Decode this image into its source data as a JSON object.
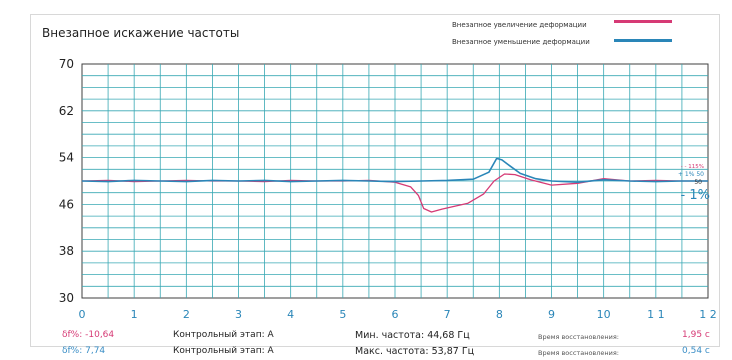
{
  "chart_data": {
    "type": "line",
    "title": "Внезапное искажение частоты",
    "xlim": [
      0,
      12
    ],
    "ylim": [
      30,
      70
    ],
    "x_ticks": [
      "0",
      "1",
      "2",
      "3",
      "4",
      "5",
      "6",
      "7",
      "8",
      "9",
      "10",
      "1 1",
      "1 2"
    ],
    "y_ticks": [
      "70",
      "62",
      "54",
      "46",
      "38",
      "30"
    ],
    "grid": true,
    "legend_position": "top-right",
    "series": [
      {
        "name": "Внезапное увеличение деформации",
        "color": "#d63a75",
        "x": [
          0,
          0.5,
          1,
          1.5,
          2,
          2.5,
          3,
          3.5,
          4,
          4.5,
          5,
          5.5,
          6,
          6.3,
          6.45,
          6.55,
          6.7,
          6.9,
          7.1,
          7.4,
          7.7,
          7.9,
          8.1,
          8.3,
          8.6,
          9.0,
          9.5,
          10,
          10.5,
          11,
          11.5,
          12
        ],
        "y": [
          50.0,
          50.1,
          49.9,
          50.0,
          50.1,
          50.0,
          50.0,
          49.9,
          50.1,
          50.0,
          50.0,
          50.1,
          49.8,
          49.0,
          47.5,
          45.3,
          44.7,
          45.2,
          45.6,
          46.2,
          47.8,
          50.0,
          51.2,
          51.1,
          50.2,
          49.3,
          49.6,
          50.4,
          50.0,
          50.1,
          50.0,
          50.0
        ]
      },
      {
        "name": "Внезапное уменьшение деформации",
        "color": "#2a86b8",
        "x": [
          0,
          0.5,
          1,
          1.5,
          2,
          2.5,
          3,
          3.5,
          4,
          4.5,
          5,
          5.5,
          6,
          6.5,
          7,
          7.5,
          7.8,
          7.95,
          8.05,
          8.2,
          8.4,
          8.7,
          9.0,
          9.5,
          10,
          10.5,
          11,
          11.5,
          12
        ],
        "y": [
          50.0,
          49.9,
          50.1,
          50.0,
          49.9,
          50.1,
          50.0,
          50.1,
          49.9,
          50.0,
          50.1,
          50.0,
          49.9,
          50.0,
          50.1,
          50.3,
          51.5,
          53.87,
          53.6,
          52.6,
          51.3,
          50.4,
          50.0,
          49.8,
          50.2,
          50.0,
          49.9,
          50.0,
          50.0
        ]
      }
    ],
    "annotations": {
      "right_top": "- - 115%",
      "right_mid": "+ 1% 50",
      "right_small": "50",
      "right_big": "- 1%"
    }
  },
  "summary": {
    "row1": {
      "df": "δf%: -10,64",
      "stage": "Контрольный этап: A",
      "freq": "Мин. частота: 44,68 Гц",
      "recovery_label": "Время восстановления:",
      "recovery_value": "1,95 с"
    },
    "row2": {
      "df": "δf%: 7,74",
      "stage": "Контрольный этап: A",
      "freq": "Макс. частота: 53,87 Гц",
      "recovery_label": "Время восстановления:",
      "recovery_value": "0,54 с"
    }
  }
}
